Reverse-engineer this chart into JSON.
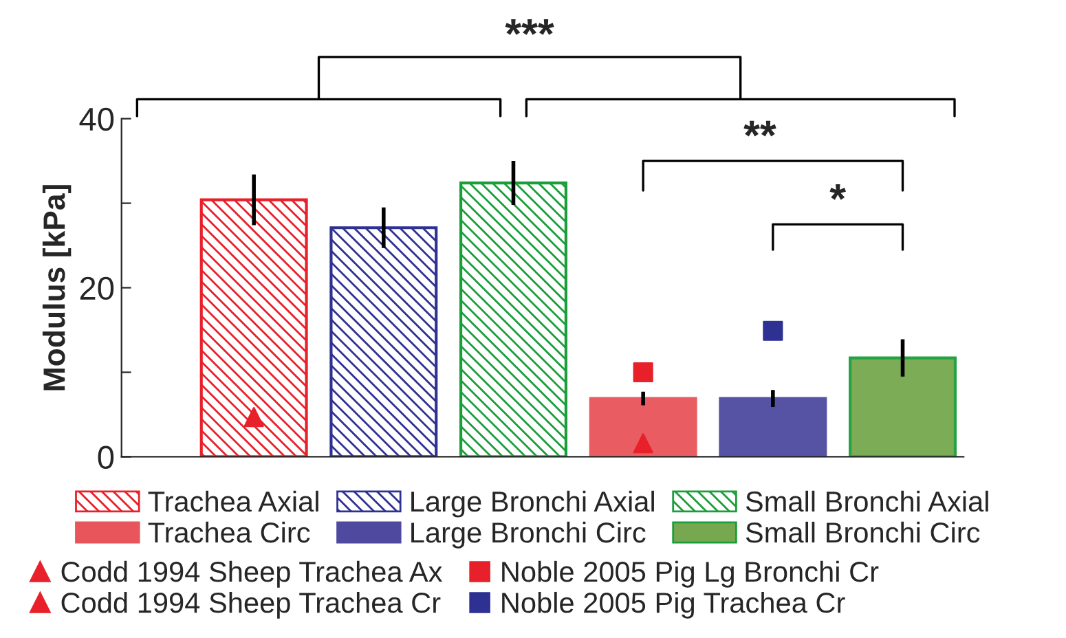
{
  "chart_data": {
    "type": "bar",
    "ylabel": "Modulus [kPa]",
    "categories": [
      null,
      null,
      null,
      null,
      null,
      null
    ],
    "ylim": [
      0,
      40
    ],
    "yticks": [
      0,
      {
        "value": 10,
        "label": null
      },
      20,
      {
        "value": 30,
        "label": null
      },
      40
    ],
    "grid": false,
    "legend": "bottom",
    "annotations": [
      "***",
      "**",
      "*"
    ],
    "series": [
      {
        "name": "Trachea Axial",
        "color": "#e8202a",
        "values": [
          30.4,
          null,
          null,
          null,
          null,
          null
        ],
        "errors": [
          3.0,
          null,
          null,
          null,
          null,
          null
        ]
      },
      {
        "name": "Large Bronchi Axial",
        "color": "#2e3192",
        "values": [
          null,
          27.1,
          null,
          null,
          null,
          null
        ],
        "errors": [
          null,
          2.4,
          null,
          null,
          null,
          null
        ]
      },
      {
        "name": "Small Bronchi Axial",
        "color": "#1a9e3a",
        "values": [
          null,
          null,
          32.4,
          null,
          null,
          null
        ],
        "errors": [
          null,
          null,
          2.6,
          null,
          null,
          null
        ]
      },
      {
        "name": "Trachea Circ",
        "color": "#e8555a",
        "values": [
          null,
          null,
          null,
          6.9,
          null,
          null
        ],
        "errors": [
          null,
          null,
          null,
          0.8,
          null,
          null
        ]
      },
      {
        "name": "Large Bronchi Circ",
        "color": "#4f4aa0",
        "values": [
          null,
          null,
          null,
          null,
          6.9,
          null
        ],
        "errors": [
          null,
          null,
          null,
          null,
          1.0,
          null
        ]
      },
      {
        "name": "Small Bronchi Circ",
        "color": "#77a84f",
        "values": [
          null,
          null,
          null,
          null,
          null,
          11.7
        ],
        "errors": [
          null,
          null,
          null,
          null,
          null,
          2.2
        ]
      },
      {
        "name": "Codd 1994 Sheep Trachea Ax",
        "type": "scatter",
        "marker": "triangle",
        "color": "#e8202a",
        "values": [
          4.7,
          null,
          null,
          null,
          null,
          null
        ]
      },
      {
        "name": "Codd 1994 Sheep Trachea Cr",
        "type": "scatter",
        "marker": "triangle",
        "color": "#e8202a",
        "values": [
          null,
          null,
          null,
          1.6,
          null,
          null
        ]
      },
      {
        "name": "Noble 2005 Pig Lg Bronchi Cr",
        "type": "scatter",
        "marker": "square",
        "color": "#e8202a",
        "values": [
          null,
          null,
          null,
          10.0,
          null,
          null
        ]
      },
      {
        "name": "Noble 2005 Pig Trachea Cr",
        "type": "scatter",
        "marker": "square",
        "color": "#2e3192",
        "values": [
          null,
          null,
          null,
          null,
          14.9,
          null
        ]
      }
    ]
  }
}
